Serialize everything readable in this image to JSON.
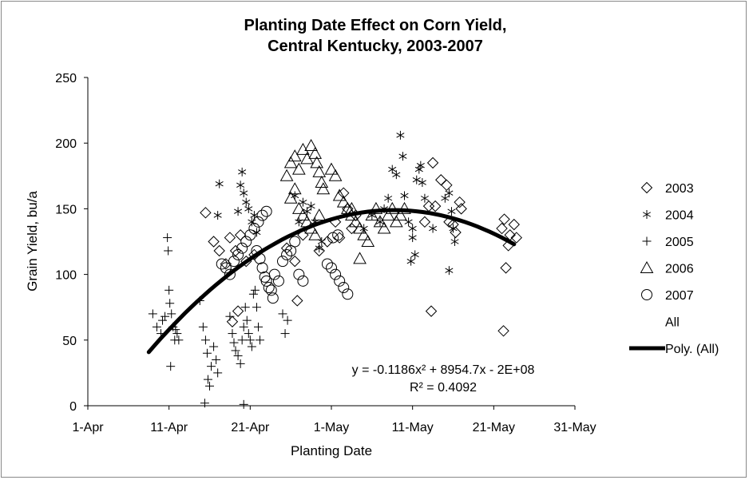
{
  "chart_data": {
    "type": "scatter",
    "title": [
      "Planting Date Effect on Corn Yield,",
      "Central Kentucky, 2003-2007"
    ],
    "xlabel": "Planting Date",
    "ylabel": "Grain Yield, bu/a",
    "xlim": [
      0,
      60
    ],
    "ylim": [
      0,
      250
    ],
    "xticks": [
      {
        "value": 0,
        "label": "1-Apr"
      },
      {
        "value": 10,
        "label": "11-Apr"
      },
      {
        "value": 20,
        "label": "21-Apr"
      },
      {
        "value": 30,
        "label": "1-May"
      },
      {
        "value": 40,
        "label": "11-May"
      },
      {
        "value": 50,
        "label": "21-May"
      },
      {
        "value": 60,
        "label": "31-May"
      }
    ],
    "yticks": [
      0,
      50,
      100,
      150,
      200,
      250
    ],
    "grid": false,
    "legend_position": "right",
    "series": [
      {
        "name": "2003",
        "marker": "diamond",
        "points": [
          [
            14.5,
            147
          ],
          [
            15.5,
            125
          ],
          [
            16.2,
            118
          ],
          [
            17,
            108
          ],
          [
            17.5,
            128
          ],
          [
            18.2,
            118
          ],
          [
            18.8,
            130
          ],
          [
            19.5,
            110
          ],
          [
            17.8,
            64
          ],
          [
            18.5,
            72
          ],
          [
            20.5,
            115
          ],
          [
            24.5,
            120
          ],
          [
            25.5,
            110
          ],
          [
            25.8,
            80
          ],
          [
            26.5,
            130
          ],
          [
            28.5,
            118
          ],
          [
            29.5,
            125
          ],
          [
            30.5,
            140
          ],
          [
            31,
            128
          ],
          [
            31.5,
            162
          ],
          [
            32,
            150
          ],
          [
            33,
            145
          ],
          [
            32.5,
            135
          ],
          [
            41.5,
            140
          ],
          [
            42,
            152
          ],
          [
            42.5,
            185
          ],
          [
            42.3,
            72
          ],
          [
            42.8,
            152
          ],
          [
            43.5,
            172
          ],
          [
            44.2,
            168
          ],
          [
            44.5,
            140
          ],
          [
            45,
            138
          ],
          [
            45.3,
            132
          ],
          [
            45.8,
            155
          ],
          [
            46,
            150
          ],
          [
            51,
            135
          ],
          [
            51.3,
            142
          ],
          [
            51.8,
            122
          ],
          [
            51.5,
            105
          ],
          [
            52,
            130
          ],
          [
            51.2,
            57
          ],
          [
            52.5,
            138
          ],
          [
            52.8,
            128
          ]
        ]
      },
      {
        "name": "2004",
        "marker": "asterisk",
        "points": [
          [
            16,
            145
          ],
          [
            16.2,
            169
          ],
          [
            18.5,
            148
          ],
          [
            18.8,
            168
          ],
          [
            19,
            178
          ],
          [
            19.2,
            162
          ],
          [
            19.5,
            155
          ],
          [
            19.8,
            150
          ],
          [
            20.2,
            140
          ],
          [
            20.5,
            145
          ],
          [
            20.8,
            132
          ],
          [
            25.5,
            160
          ],
          [
            26,
            140
          ],
          [
            26.5,
            155
          ],
          [
            27,
            148
          ],
          [
            27.5,
            152
          ],
          [
            28,
            140
          ],
          [
            28.5,
            120
          ],
          [
            28.8,
            125
          ],
          [
            34,
            135
          ],
          [
            35,
            145
          ],
          [
            36,
            140
          ],
          [
            36.5,
            150
          ],
          [
            37,
            158
          ],
          [
            37.5,
            180
          ],
          [
            38,
            176
          ],
          [
            38.5,
            206
          ],
          [
            38.8,
            190
          ],
          [
            39,
            160
          ],
          [
            39.5,
            140
          ],
          [
            39.8,
            110
          ],
          [
            40,
            128
          ],
          [
            40.5,
            172
          ],
          [
            40.8,
            180
          ],
          [
            41,
            183
          ],
          [
            41.2,
            170
          ],
          [
            41.5,
            158
          ],
          [
            40.3,
            115
          ],
          [
            40,
            135
          ],
          [
            44,
            158
          ],
          [
            44.5,
            162
          ],
          [
            44.8,
            148
          ],
          [
            45,
            135
          ],
          [
            45.2,
            125
          ],
          [
            44.5,
            103
          ],
          [
            42.5,
            135
          ]
        ]
      },
      {
        "name": "2005",
        "marker": "plus",
        "points": [
          [
            8,
            70
          ],
          [
            8.5,
            60
          ],
          [
            9,
            55
          ],
          [
            9.2,
            65
          ],
          [
            9.5,
            68
          ],
          [
            9.8,
            128
          ],
          [
            9.9,
            118
          ],
          [
            10,
            88
          ],
          [
            10.1,
            78
          ],
          [
            10.3,
            70
          ],
          [
            10.5,
            60
          ],
          [
            10.7,
            50
          ],
          [
            10.2,
            30
          ],
          [
            10.8,
            58
          ],
          [
            11,
            55
          ],
          [
            11.2,
            50
          ],
          [
            13.8,
            80
          ],
          [
            14.2,
            60
          ],
          [
            14.5,
            50
          ],
          [
            14.7,
            40
          ],
          [
            14.8,
            20
          ],
          [
            15,
            15
          ],
          [
            15.2,
            30
          ],
          [
            15.5,
            45
          ],
          [
            15.8,
            35
          ],
          [
            16,
            25
          ],
          [
            14.4,
            2
          ],
          [
            17.5,
            68
          ],
          [
            17.8,
            55
          ],
          [
            18,
            48
          ],
          [
            18.2,
            42
          ],
          [
            18.5,
            38
          ],
          [
            18.8,
            32
          ],
          [
            19,
            50
          ],
          [
            19.2,
            60
          ],
          [
            19.4,
            75
          ],
          [
            19.6,
            65
          ],
          [
            19.8,
            55
          ],
          [
            20,
            50
          ],
          [
            20.2,
            45
          ],
          [
            20.4,
            85
          ],
          [
            20.6,
            88
          ],
          [
            20.8,
            75
          ],
          [
            21,
            60
          ],
          [
            21.2,
            50
          ],
          [
            24,
            70
          ],
          [
            24.3,
            55
          ],
          [
            24.6,
            65
          ],
          [
            19.2,
            1
          ]
        ]
      },
      {
        "name": "2006",
        "marker": "triangle",
        "points": [
          [
            24.5,
            175
          ],
          [
            25,
            185
          ],
          [
            25.5,
            190
          ],
          [
            26,
            180
          ],
          [
            26.5,
            195
          ],
          [
            27,
            188
          ],
          [
            27.5,
            198
          ],
          [
            28,
            192
          ],
          [
            28.2,
            185
          ],
          [
            28.5,
            178
          ],
          [
            28.8,
            170
          ],
          [
            29,
            165
          ],
          [
            25,
            158
          ],
          [
            25.5,
            165
          ],
          [
            26,
            150
          ],
          [
            26.5,
            145
          ],
          [
            27,
            140
          ],
          [
            27.5,
            135
          ],
          [
            28,
            130
          ],
          [
            28.5,
            145
          ],
          [
            30,
            180
          ],
          [
            30.5,
            175
          ],
          [
            31,
            160
          ],
          [
            31.5,
            155
          ],
          [
            32,
            150
          ],
          [
            32.5,
            145
          ],
          [
            33,
            140
          ],
          [
            33.5,
            135
          ],
          [
            34,
            130
          ],
          [
            34.5,
            125
          ],
          [
            35,
            145
          ],
          [
            35.5,
            150
          ],
          [
            36,
            140
          ],
          [
            36.5,
            135
          ],
          [
            37,
            145
          ],
          [
            37.5,
            150
          ],
          [
            38,
            140
          ],
          [
            38.5,
            145
          ],
          [
            39,
            150
          ],
          [
            33.5,
            112
          ],
          [
            32.5,
            150
          ]
        ]
      },
      {
        "name": "2007",
        "marker": "circle",
        "points": [
          [
            16.5,
            108
          ],
          [
            17,
            105
          ],
          [
            17.5,
            100
          ],
          [
            18,
            110
          ],
          [
            18.5,
            115
          ],
          [
            19,
            120
          ],
          [
            19.5,
            125
          ],
          [
            20,
            130
          ],
          [
            20.5,
            135
          ],
          [
            21,
            140
          ],
          [
            21.5,
            145
          ],
          [
            22,
            148
          ],
          [
            20.8,
            118
          ],
          [
            21.2,
            112
          ],
          [
            21.5,
            105
          ],
          [
            21.8,
            98
          ],
          [
            22,
            95
          ],
          [
            22.3,
            90
          ],
          [
            22.6,
            88
          ],
          [
            23,
            100
          ],
          [
            23.5,
            95
          ],
          [
            24,
            110
          ],
          [
            24.5,
            115
          ],
          [
            25,
            118
          ],
          [
            25.5,
            125
          ],
          [
            26,
            100
          ],
          [
            26.5,
            95
          ],
          [
            22.8,
            82
          ],
          [
            29.5,
            108
          ],
          [
            30,
            105
          ],
          [
            30.5,
            100
          ],
          [
            31,
            95
          ],
          [
            31.5,
            90
          ],
          [
            32,
            85
          ],
          [
            30.2,
            128
          ],
          [
            30.8,
            130
          ]
        ]
      }
    ],
    "trendline": {
      "name": "Poly. (All)",
      "type": "polynomial",
      "order": 2,
      "peak_x": 37.7,
      "peak_y": 149,
      "a": -0.1186,
      "x_range": [
        7.5,
        52.5
      ],
      "equation": "y = -0.1186x² + 8954.7x - 2E+08",
      "r_squared": "R² = 0.4092"
    },
    "legend": [
      {
        "label": "2003",
        "marker": "diamond"
      },
      {
        "label": "2004",
        "marker": "asterisk"
      },
      {
        "label": "2005",
        "marker": "plus"
      },
      {
        "label": "2006",
        "marker": "triangle"
      },
      {
        "label": "2007",
        "marker": "circle"
      },
      {
        "label": "All",
        "marker": "none"
      },
      {
        "label": "Poly. (All)",
        "marker": "thick-line"
      }
    ]
  }
}
